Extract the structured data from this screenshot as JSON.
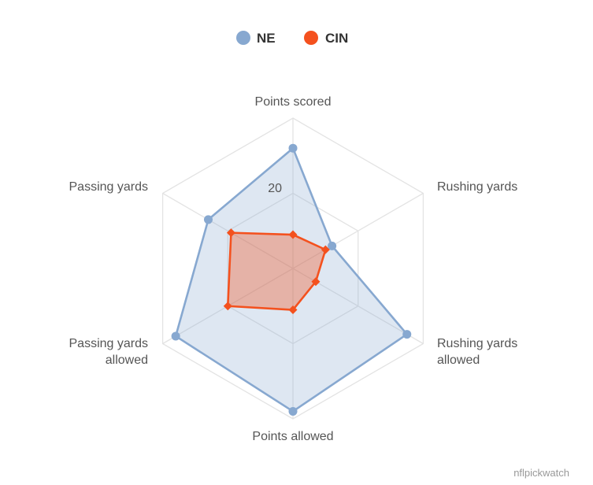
{
  "chart_data": {
    "type": "radar",
    "axes": [
      "Points scored",
      "Rushing yards",
      "Rushing yards allowed",
      "Points allowed",
      "Passing yards allowed",
      "Passing yards"
    ],
    "tick_label": "20",
    "tick_value": 20,
    "max": 40,
    "series": [
      {
        "name": "NE",
        "color": "#87a8d0",
        "values": [
          32,
          12,
          35,
          38,
          36,
          26
        ]
      },
      {
        "name": "CIN",
        "color": "#f4511e",
        "values": [
          9,
          10,
          7,
          11,
          20,
          19
        ]
      }
    ]
  },
  "credit": "nflpickwatch"
}
